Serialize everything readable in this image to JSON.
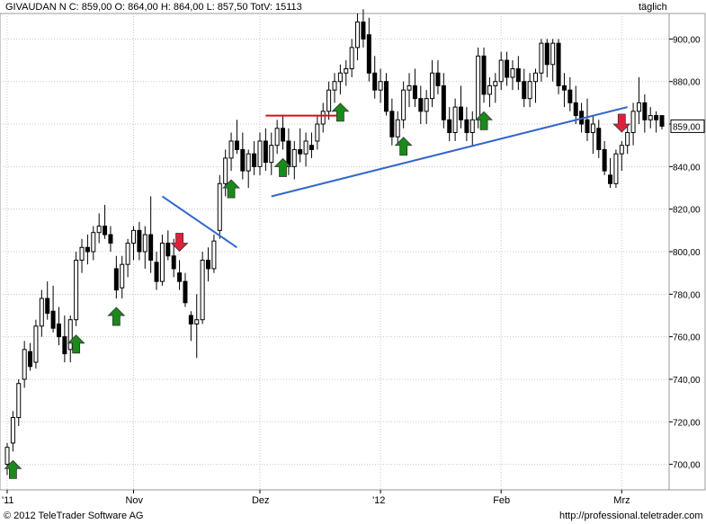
{
  "header": {
    "quote_line": "GIVAUDAN N C: 859,00 O: 864,00 H: 864,00 L: 857,50 TotV: 15113",
    "period_label": "täglich"
  },
  "footer": {
    "copyright": "© 2012  TeleTrader Software AG",
    "url": "http://professional.teletrader.com"
  },
  "colors": {
    "grid": "#c8c8c8",
    "up_arrow": "#1a8a1a",
    "down_arrow": "#e0203a",
    "trendline": "#3366cc",
    "resistance": "#d01010",
    "candle": "#000000"
  },
  "chart_data": {
    "type": "candlestick",
    "y_ticks": [
      "700,00",
      "720,00",
      "740,00",
      "760,00",
      "780,00",
      "800,00",
      "820,00",
      "840,00",
      "860,00",
      "880,00",
      "900,00"
    ],
    "ylim": [
      688,
      912
    ],
    "last_price_label": "859,00",
    "x_labels": [
      {
        "text": "'11",
        "index": 0
      },
      {
        "text": "Nov",
        "index": 22
      },
      {
        "text": "Dez",
        "index": 44
      },
      {
        "text": "'12",
        "index": 65
      },
      {
        "text": "Feb",
        "index": 86
      },
      {
        "text": "Mrz",
        "index": 107
      }
    ],
    "candles": [
      {
        "o": 700,
        "h": 710,
        "l": 695,
        "c": 708
      },
      {
        "o": 710,
        "h": 725,
        "l": 706,
        "c": 722
      },
      {
        "o": 722,
        "h": 740,
        "l": 718,
        "c": 738
      },
      {
        "o": 740,
        "h": 758,
        "l": 736,
        "c": 754
      },
      {
        "o": 753,
        "h": 757,
        "l": 744,
        "c": 746
      },
      {
        "o": 748,
        "h": 768,
        "l": 745,
        "c": 765
      },
      {
        "o": 765,
        "h": 782,
        "l": 760,
        "c": 778
      },
      {
        "o": 778,
        "h": 786,
        "l": 768,
        "c": 771
      },
      {
        "o": 772,
        "h": 784,
        "l": 762,
        "c": 764
      },
      {
        "o": 766,
        "h": 774,
        "l": 756,
        "c": 760
      },
      {
        "o": 760,
        "h": 770,
        "l": 748,
        "c": 752
      },
      {
        "o": 754,
        "h": 770,
        "l": 748,
        "c": 768
      },
      {
        "o": 768,
        "h": 800,
        "l": 765,
        "c": 796
      },
      {
        "o": 796,
        "h": 806,
        "l": 790,
        "c": 802
      },
      {
        "o": 802,
        "h": 808,
        "l": 794,
        "c": 800
      },
      {
        "o": 800,
        "h": 812,
        "l": 796,
        "c": 809
      },
      {
        "o": 809,
        "h": 818,
        "l": 804,
        "c": 812
      },
      {
        "o": 812,
        "h": 822,
        "l": 806,
        "c": 808
      },
      {
        "o": 808,
        "h": 812,
        "l": 800,
        "c": 804
      },
      {
        "o": 792,
        "h": 798,
        "l": 778,
        "c": 782
      },
      {
        "o": 783,
        "h": 798,
        "l": 778,
        "c": 794
      },
      {
        "o": 794,
        "h": 806,
        "l": 788,
        "c": 804
      },
      {
        "o": 804,
        "h": 812,
        "l": 796,
        "c": 810
      },
      {
        "o": 810,
        "h": 814,
        "l": 796,
        "c": 800
      },
      {
        "o": 800,
        "h": 812,
        "l": 792,
        "c": 808
      },
      {
        "o": 808,
        "h": 826,
        "l": 790,
        "c": 796
      },
      {
        "o": 795,
        "h": 800,
        "l": 782,
        "c": 786
      },
      {
        "o": 786,
        "h": 808,
        "l": 784,
        "c": 804
      },
      {
        "o": 804,
        "h": 810,
        "l": 796,
        "c": 798
      },
      {
        "o": 798,
        "h": 806,
        "l": 788,
        "c": 792
      },
      {
        "o": 790,
        "h": 796,
        "l": 782,
        "c": 786
      },
      {
        "o": 786,
        "h": 790,
        "l": 774,
        "c": 776
      },
      {
        "o": 770,
        "h": 772,
        "l": 758,
        "c": 766
      },
      {
        "o": 766,
        "h": 780,
        "l": 750,
        "c": 768
      },
      {
        "o": 768,
        "h": 800,
        "l": 766,
        "c": 796
      },
      {
        "o": 796,
        "h": 802,
        "l": 786,
        "c": 792
      },
      {
        "o": 792,
        "h": 808,
        "l": 790,
        "c": 805
      },
      {
        "o": 810,
        "h": 836,
        "l": 806,
        "c": 832
      },
      {
        "o": 832,
        "h": 848,
        "l": 826,
        "c": 844
      },
      {
        "o": 844,
        "h": 856,
        "l": 838,
        "c": 852
      },
      {
        "o": 852,
        "h": 862,
        "l": 846,
        "c": 848
      },
      {
        "o": 848,
        "h": 856,
        "l": 834,
        "c": 838
      },
      {
        "o": 838,
        "h": 848,
        "l": 830,
        "c": 846
      },
      {
        "o": 846,
        "h": 852,
        "l": 836,
        "c": 840
      },
      {
        "o": 840,
        "h": 856,
        "l": 836,
        "c": 852
      },
      {
        "o": 852,
        "h": 858,
        "l": 838,
        "c": 842
      },
      {
        "o": 842,
        "h": 856,
        "l": 836,
        "c": 850
      },
      {
        "o": 850,
        "h": 862,
        "l": 846,
        "c": 858
      },
      {
        "o": 858,
        "h": 864,
        "l": 848,
        "c": 852
      },
      {
        "o": 852,
        "h": 858,
        "l": 836,
        "c": 840
      },
      {
        "o": 840,
        "h": 852,
        "l": 834,
        "c": 848
      },
      {
        "o": 848,
        "h": 858,
        "l": 842,
        "c": 846
      },
      {
        "o": 846,
        "h": 856,
        "l": 840,
        "c": 852
      },
      {
        "o": 850,
        "h": 856,
        "l": 844,
        "c": 848
      },
      {
        "o": 852,
        "h": 864,
        "l": 848,
        "c": 860
      },
      {
        "o": 860,
        "h": 870,
        "l": 856,
        "c": 866
      },
      {
        "o": 866,
        "h": 880,
        "l": 862,
        "c": 876
      },
      {
        "o": 876,
        "h": 884,
        "l": 870,
        "c": 880
      },
      {
        "o": 880,
        "h": 888,
        "l": 874,
        "c": 884
      },
      {
        "o": 884,
        "h": 890,
        "l": 878,
        "c": 886
      },
      {
        "o": 886,
        "h": 900,
        "l": 882,
        "c": 896
      },
      {
        "o": 896,
        "h": 912,
        "l": 890,
        "c": 908
      },
      {
        "o": 908,
        "h": 914,
        "l": 896,
        "c": 900
      },
      {
        "o": 902,
        "h": 910,
        "l": 880,
        "c": 884
      },
      {
        "o": 884,
        "h": 892,
        "l": 872,
        "c": 876
      },
      {
        "o": 876,
        "h": 886,
        "l": 870,
        "c": 880
      },
      {
        "o": 880,
        "h": 884,
        "l": 864,
        "c": 866
      },
      {
        "o": 866,
        "h": 872,
        "l": 850,
        "c": 854
      },
      {
        "o": 854,
        "h": 866,
        "l": 850,
        "c": 862
      },
      {
        "o": 862,
        "h": 880,
        "l": 858,
        "c": 876
      },
      {
        "o": 876,
        "h": 884,
        "l": 868,
        "c": 878
      },
      {
        "o": 878,
        "h": 886,
        "l": 868,
        "c": 872
      },
      {
        "o": 872,
        "h": 878,
        "l": 860,
        "c": 866
      },
      {
        "o": 866,
        "h": 876,
        "l": 860,
        "c": 872
      },
      {
        "o": 872,
        "h": 890,
        "l": 868,
        "c": 884
      },
      {
        "o": 884,
        "h": 890,
        "l": 874,
        "c": 878
      },
      {
        "o": 878,
        "h": 884,
        "l": 858,
        "c": 862
      },
      {
        "o": 862,
        "h": 868,
        "l": 852,
        "c": 856
      },
      {
        "o": 856,
        "h": 872,
        "l": 852,
        "c": 868
      },
      {
        "o": 868,
        "h": 878,
        "l": 858,
        "c": 862
      },
      {
        "o": 862,
        "h": 868,
        "l": 852,
        "c": 856
      },
      {
        "o": 856,
        "h": 866,
        "l": 850,
        "c": 862
      },
      {
        "o": 862,
        "h": 896,
        "l": 858,
        "c": 892
      },
      {
        "o": 892,
        "h": 896,
        "l": 870,
        "c": 874
      },
      {
        "o": 874,
        "h": 882,
        "l": 868,
        "c": 878
      },
      {
        "o": 878,
        "h": 884,
        "l": 870,
        "c": 880
      },
      {
        "o": 880,
        "h": 894,
        "l": 876,
        "c": 890
      },
      {
        "o": 890,
        "h": 894,
        "l": 878,
        "c": 882
      },
      {
        "o": 882,
        "h": 890,
        "l": 876,
        "c": 886
      },
      {
        "o": 886,
        "h": 892,
        "l": 876,
        "c": 880
      },
      {
        "o": 880,
        "h": 886,
        "l": 868,
        "c": 872
      },
      {
        "o": 872,
        "h": 884,
        "l": 868,
        "c": 880
      },
      {
        "o": 880,
        "h": 886,
        "l": 870,
        "c": 884
      },
      {
        "o": 884,
        "h": 900,
        "l": 880,
        "c": 898
      },
      {
        "o": 898,
        "h": 900,
        "l": 882,
        "c": 888
      },
      {
        "o": 888,
        "h": 900,
        "l": 880,
        "c": 898
      },
      {
        "o": 898,
        "h": 900,
        "l": 874,
        "c": 878
      },
      {
        "o": 878,
        "h": 884,
        "l": 868,
        "c": 876
      },
      {
        "o": 876,
        "h": 882,
        "l": 866,
        "c": 870
      },
      {
        "o": 870,
        "h": 878,
        "l": 860,
        "c": 864
      },
      {
        "o": 866,
        "h": 870,
        "l": 856,
        "c": 860
      },
      {
        "o": 862,
        "h": 872,
        "l": 852,
        "c": 856
      },
      {
        "o": 856,
        "h": 864,
        "l": 846,
        "c": 860
      },
      {
        "o": 858,
        "h": 862,
        "l": 844,
        "c": 848
      },
      {
        "o": 848,
        "h": 852,
        "l": 836,
        "c": 838
      },
      {
        "o": 836,
        "h": 844,
        "l": 830,
        "c": 832
      },
      {
        "o": 832,
        "h": 848,
        "l": 830,
        "c": 846
      },
      {
        "o": 846,
        "h": 852,
        "l": 838,
        "c": 850
      },
      {
        "o": 850,
        "h": 860,
        "l": 846,
        "c": 856
      },
      {
        "o": 856,
        "h": 870,
        "l": 850,
        "c": 866
      },
      {
        "o": 866,
        "h": 882,
        "l": 860,
        "c": 870
      },
      {
        "o": 870,
        "h": 874,
        "l": 856,
        "c": 862
      },
      {
        "o": 862,
        "h": 868,
        "l": 858,
        "c": 864
      },
      {
        "o": 864,
        "h": 866,
        "l": 856,
        "c": 862
      },
      {
        "o": 864,
        "h": 864,
        "l": 857.5,
        "c": 859
      }
    ],
    "up_arrows": [
      1,
      12,
      19,
      39,
      48,
      58,
      69,
      83
    ],
    "down_arrows": [
      30,
      107
    ],
    "trendlines": [
      {
        "from": {
          "i": 27,
          "v": 826
        },
        "to": {
          "i": 40,
          "v": 802
        }
      },
      {
        "from": {
          "i": 46,
          "v": 826
        },
        "to": {
          "i": 108,
          "v": 868
        }
      }
    ],
    "resistance": {
      "from": {
        "i": 45,
        "v": 864
      },
      "to": {
        "i": 58,
        "v": 864
      }
    }
  }
}
